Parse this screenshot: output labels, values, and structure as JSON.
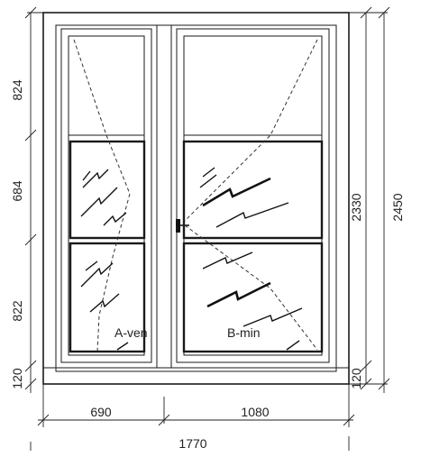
{
  "dimensions": {
    "left": [
      "824",
      "684",
      "822",
      "120"
    ],
    "right_inner": [
      "2330",
      "120"
    ],
    "right_outer": [
      "2450"
    ],
    "bottom": [
      "690",
      "1080"
    ],
    "bottom_total": "1770"
  },
  "labels": {
    "left_leaf": "A-ven",
    "right_leaf": "B-min"
  }
}
